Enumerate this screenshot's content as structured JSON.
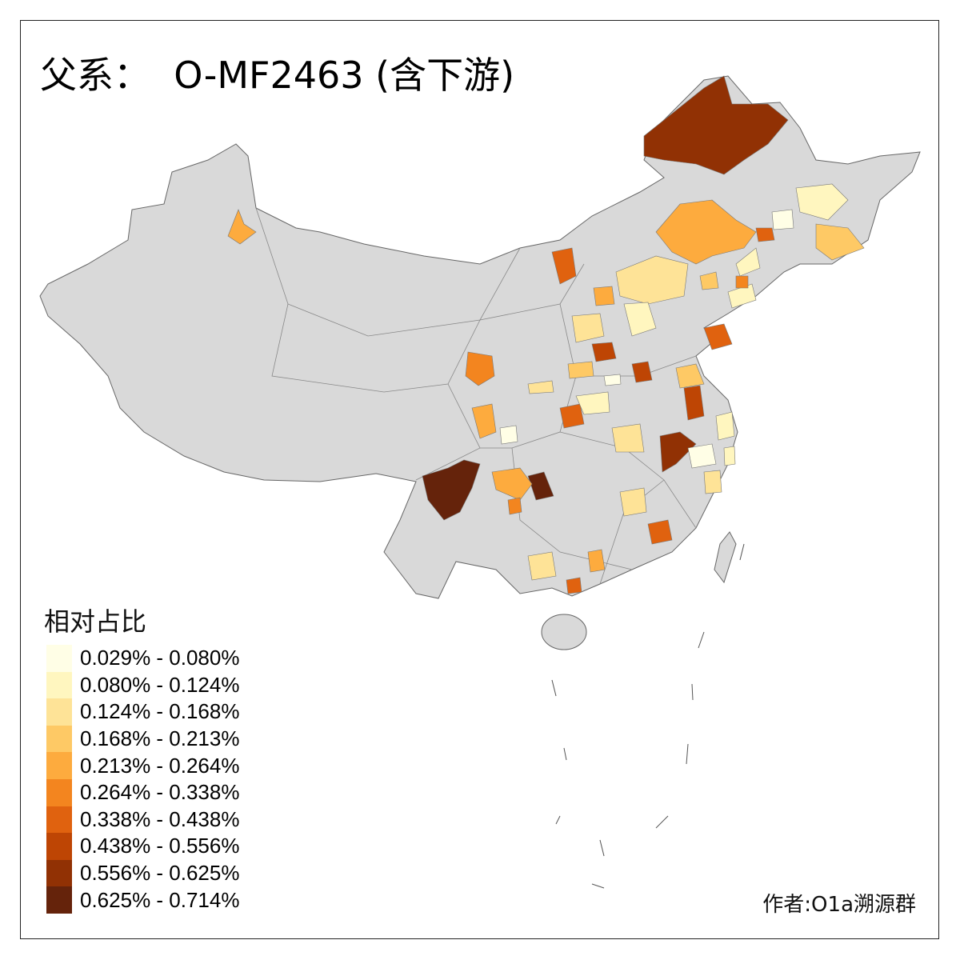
{
  "title": "父系：  O-MF2463 (含下游)",
  "legend": {
    "title": "相对占比",
    "classes": [
      {
        "label": "0.029% - 0.080%",
        "color": "#fffee6"
      },
      {
        "label": "0.080% - 0.124%",
        "color": "#fff6bf"
      },
      {
        "label": "0.124% - 0.168%",
        "color": "#fee397"
      },
      {
        "label": "0.168% - 0.213%",
        "color": "#fec965"
      },
      {
        "label": "0.213% - 0.264%",
        "color": "#fdab3e"
      },
      {
        "label": "0.264% - 0.338%",
        "color": "#f3851f"
      },
      {
        "label": "0.338% - 0.438%",
        "color": "#e0620f"
      },
      {
        "label": "0.438% - 0.556%",
        "color": "#be4504"
      },
      {
        "label": "0.556% - 0.625%",
        "color": "#913104"
      },
      {
        "label": "0.625% - 0.714%",
        "color": "#65230b"
      }
    ]
  },
  "no_data_color": "#d9d9d9",
  "credit": "作者:O1a溯源群"
}
